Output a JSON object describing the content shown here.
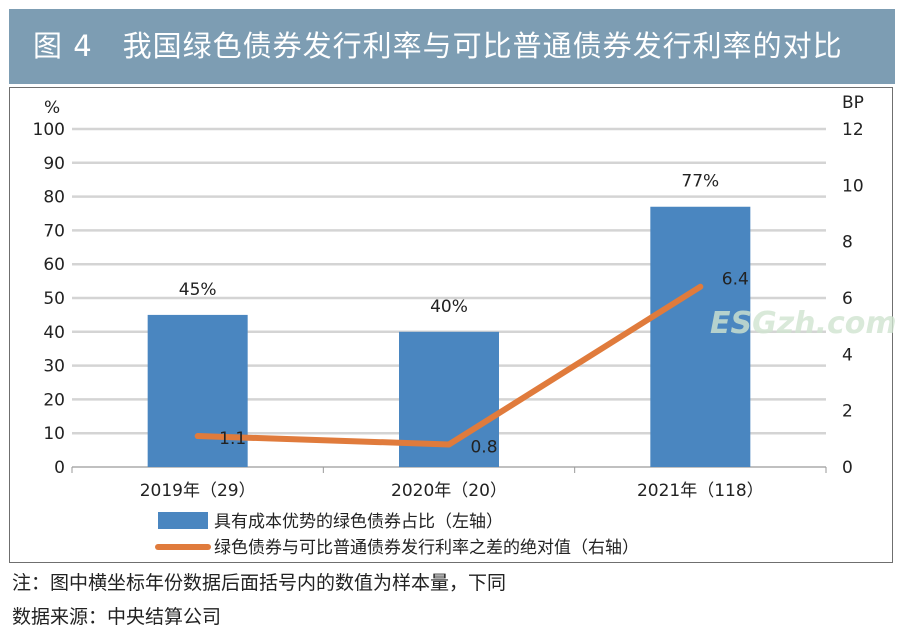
{
  "title": "图 4　我国绿色债券发行利率与可比普通债券发行利率的对比",
  "watermark": "ESGzh.com",
  "chart_data": {
    "type": "bar+line",
    "categories": [
      "2019年（29）",
      "2020年（20）",
      "2021年（118）"
    ],
    "series": [
      {
        "name": "具有成本优势的绿色债券占比（左轴）",
        "type": "bar",
        "axis": "left",
        "values": [
          45,
          40,
          77
        ],
        "labels": [
          "45%",
          "40%",
          "77%"
        ],
        "color": "#4a86c0"
      },
      {
        "name": "绿色债券与可比普通债券发行利率之差的绝对值（右轴）",
        "type": "line",
        "axis": "right",
        "values": [
          1.1,
          0.8,
          6.4
        ],
        "labels": [
          "1.1",
          "0.8",
          "6.4"
        ],
        "color": "#e07b3c"
      }
    ],
    "y_left": {
      "unit": "%",
      "ylim": [
        0,
        100
      ],
      "ticks": [
        0,
        10,
        20,
        30,
        40,
        50,
        60,
        70,
        80,
        90,
        100
      ]
    },
    "y_right": {
      "unit": "BP",
      "ylim": [
        0,
        12
      ],
      "ticks": [
        0,
        2,
        4,
        6,
        8,
        10,
        12
      ]
    },
    "grid": true,
    "legend_position": "bottom-left"
  },
  "notes": [
    "注：图中横坐标年份数据后面括号内的数值为样本量，下同",
    "数据来源：中央结算公司"
  ]
}
